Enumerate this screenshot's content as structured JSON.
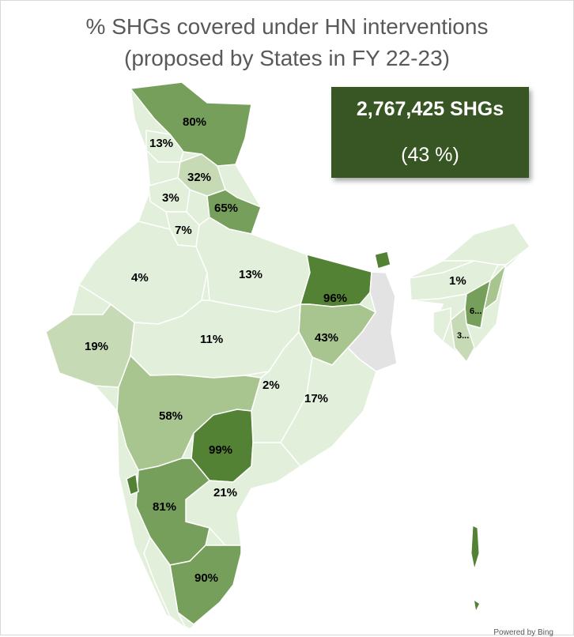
{
  "title": {
    "line1": "% SHGs covered under HN interventions",
    "line2": "(proposed by States in FY 22-23)"
  },
  "summary_box": {
    "count_label": "2,767,425 SHGs",
    "percent_label": "(43 %)"
  },
  "credit": "Powered by Bing",
  "colors": {
    "lightest": "#e2efda",
    "light": "#c6dbb5",
    "medium": "#a9c58f",
    "dark": "#769f5b",
    "darkest": "#548235",
    "no_data": "#e3e3e3",
    "summary_box": "#375623"
  },
  "regions": [
    {
      "label": "80%",
      "value": 80
    },
    {
      "label": "13%",
      "value": 13
    },
    {
      "label": "32%",
      "value": 32
    },
    {
      "label": "3%",
      "value": 3
    },
    {
      "label": "65%",
      "value": 65
    },
    {
      "label": "7%",
      "value": 7
    },
    {
      "label": "4%",
      "value": 4
    },
    {
      "label": "13%",
      "value": 13
    },
    {
      "label": "96%",
      "value": 96
    },
    {
      "label": "1%",
      "value": 1
    },
    {
      "label": "6...",
      "value": null
    },
    {
      "label": "3...",
      "value": null
    },
    {
      "label": "19%",
      "value": 19
    },
    {
      "label": "11%",
      "value": 11
    },
    {
      "label": "43%",
      "value": 43
    },
    {
      "label": "2%",
      "value": 2
    },
    {
      "label": "17%",
      "value": 17
    },
    {
      "label": "58%",
      "value": 58
    },
    {
      "label": "99%",
      "value": 99
    },
    {
      "label": "21%",
      "value": 21
    },
    {
      "label": "81%",
      "value": 81
    },
    {
      "label": "90%",
      "value": 90
    }
  ]
}
